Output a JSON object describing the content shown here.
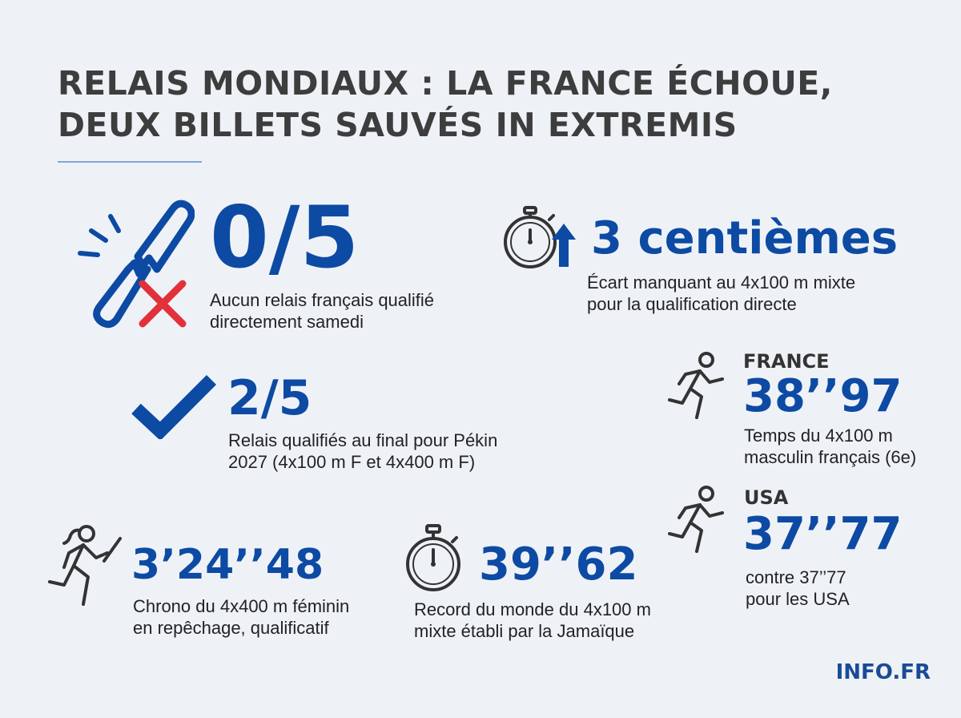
{
  "header": {
    "title_line1": "RELAIS MONDIAUX : LA FRANCE ÉCHOUE,",
    "title_line2": "DEUX BILLETS SAUVÉS IN EXTREMIS"
  },
  "stats": {
    "zero_of_five": {
      "value": "0/5",
      "desc_line1": "Aucun relais français qualifié",
      "desc_line2": "directement samedi",
      "icon": "broken-baton-icon"
    },
    "centiemes": {
      "value": "3 centièmes",
      "desc_line1": "Écart manquant au 4x100 m mixte",
      "desc_line2": "pour la qualification directe",
      "icon": "stopwatch-arrow-up-icon"
    },
    "two_of_five": {
      "value": "2/5",
      "desc_line1": "Relais qualifiés au final pour Pékin",
      "desc_line2": "2027 (4x100 m F et 4x400 m F)",
      "icon": "check-icon"
    },
    "france": {
      "label": "FRANCE",
      "value": "38’’97",
      "desc_line1": "Temps du 4x100 m",
      "desc_line2": "masculin français (6e)",
      "icon": "runner-icon"
    },
    "usa": {
      "label": "USA",
      "value": "37’’77",
      "desc_line1": "contre 37’’77",
      "desc_line2": "pour les USA",
      "icon": "runner-icon"
    },
    "women_4x400": {
      "value": "3’24’’48",
      "desc_line1": "Chrono du 4x400 m féminin",
      "desc_line2": "en repêchage, qualificatif",
      "icon": "female-relay-runner-icon"
    },
    "record": {
      "value": "39’’62",
      "desc_line1": "Record du monde du 4x100 m",
      "desc_line2": "mixte établi par la Jamaïque",
      "icon": "stopwatch-icon"
    }
  },
  "footer": {
    "brand": "INFO.FR"
  },
  "colors": {
    "accent": "#0d4aa3",
    "title": "#3d3d3d",
    "alert": "#e2313b",
    "background": "#eef2f7"
  }
}
